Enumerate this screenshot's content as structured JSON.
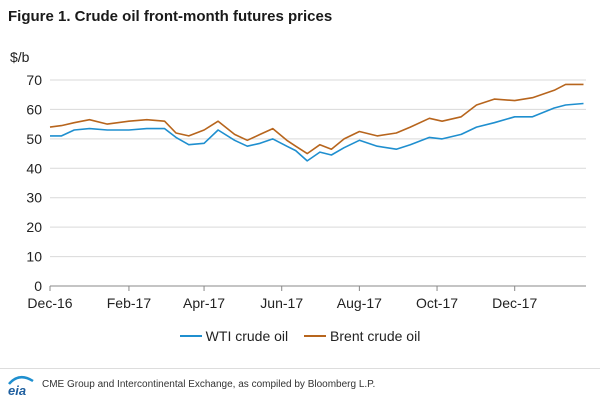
{
  "header": {
    "title": "Figure 1. Crude oil front-month futures prices"
  },
  "footer": {
    "logo_text": "eia",
    "source": "CME Group and Intercontinental Exchange, as compiled by Bloomberg L.P."
  },
  "colors": {
    "wti": "#1f8fcf",
    "brent": "#b7651d",
    "axis": "#888888",
    "grid": "#d9d9d9"
  },
  "chart_data": {
    "type": "line",
    "title": "Figure 1. Crude oil front-month futures prices",
    "ylabel": "$/b",
    "xlabel": "",
    "ylim": [
      0,
      70
    ],
    "yticks": [
      0,
      10,
      20,
      30,
      40,
      50,
      60,
      70
    ],
    "xlim": [
      "2016-12-01",
      "2018-01-26"
    ],
    "xtick_labels": [
      "Dec-16",
      "Feb-17",
      "Apr-17",
      "Jun-17",
      "Aug-17",
      "Oct-17",
      "Dec-17"
    ],
    "xtick_dates": [
      "2016-12-01",
      "2017-02-01",
      "2017-04-01",
      "2017-06-01",
      "2017-08-01",
      "2017-10-01",
      "2017-12-01"
    ],
    "grid": "horizontal",
    "legend": "bottom",
    "series": [
      {
        "name": "WTI crude oil",
        "x": [
          "2016-12-01",
          "2016-12-10",
          "2016-12-20",
          "2017-01-01",
          "2017-01-15",
          "2017-02-01",
          "2017-02-15",
          "2017-03-01",
          "2017-03-10",
          "2017-03-20",
          "2017-04-01",
          "2017-04-12",
          "2017-04-25",
          "2017-05-05",
          "2017-05-15",
          "2017-05-25",
          "2017-06-05",
          "2017-06-12",
          "2017-06-21",
          "2017-07-01",
          "2017-07-10",
          "2017-07-20",
          "2017-08-01",
          "2017-08-15",
          "2017-08-30",
          "2017-09-10",
          "2017-09-25",
          "2017-10-05",
          "2017-10-20",
          "2017-11-01",
          "2017-11-15",
          "2017-12-01",
          "2017-12-15",
          "2018-01-01",
          "2018-01-10",
          "2018-01-24"
        ],
        "y": [
          51,
          51,
          53,
          53.5,
          53,
          53,
          53.5,
          53.5,
          50.5,
          48,
          48.5,
          53,
          49.5,
          47.5,
          48.5,
          50,
          47.5,
          46,
          42.5,
          45.5,
          44.5,
          47,
          49.5,
          47.5,
          46.5,
          48,
          50.5,
          50,
          51.5,
          54,
          55.5,
          57.5,
          57.5,
          60.5,
          61.5,
          62
        ]
      },
      {
        "name": "Brent crude oil",
        "x": [
          "2016-12-01",
          "2016-12-10",
          "2016-12-20",
          "2017-01-01",
          "2017-01-15",
          "2017-02-01",
          "2017-02-15",
          "2017-03-01",
          "2017-03-10",
          "2017-03-20",
          "2017-04-01",
          "2017-04-12",
          "2017-04-25",
          "2017-05-05",
          "2017-05-15",
          "2017-05-25",
          "2017-06-05",
          "2017-06-12",
          "2017-06-21",
          "2017-07-01",
          "2017-07-10",
          "2017-07-20",
          "2017-08-01",
          "2017-08-15",
          "2017-08-30",
          "2017-09-10",
          "2017-09-25",
          "2017-10-05",
          "2017-10-20",
          "2017-11-01",
          "2017-11-15",
          "2017-12-01",
          "2017-12-15",
          "2018-01-01",
          "2018-01-10",
          "2018-01-24"
        ],
        "y": [
          54,
          54.5,
          55.5,
          56.5,
          55,
          56,
          56.5,
          56,
          52,
          51,
          53,
          56,
          51.5,
          49.5,
          51.5,
          53.5,
          49.5,
          47.5,
          45,
          48,
          46.5,
          50,
          52.5,
          51,
          52,
          54,
          57,
          56,
          57.5,
          61.5,
          63.5,
          63,
          64,
          66.5,
          68.5,
          68.5
        ]
      }
    ]
  }
}
